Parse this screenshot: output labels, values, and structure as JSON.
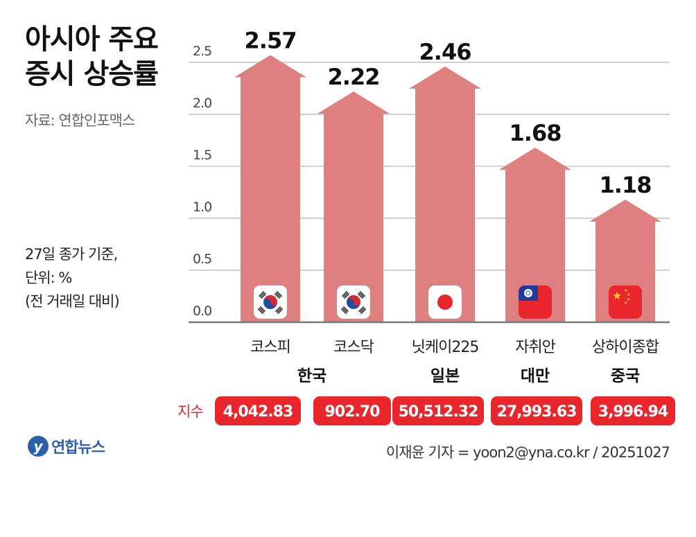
{
  "title_line1": "아시아 주요",
  "title_line2": "증시 상승률",
  "source": "자료: 연합인포맥스",
  "note_lines": [
    "27일 종가 기준,",
    "단위: %",
    "(전 거래일 대비)"
  ],
  "index_label": "지수",
  "logo_text": "연합뉴스",
  "credit": "이재윤 기자 = yoon2@yna.co.kr / 20251027",
  "colors": {
    "arrow": "#df8080",
    "badge": "#e8262b",
    "grid": "#d0d0d0",
    "axis": "#777777"
  },
  "chart_data": {
    "type": "bar",
    "title": "아시아 주요 증시 상승률",
    "ylabel": "%",
    "ylim": [
      0,
      2.5
    ],
    "yticks": [
      "0.0",
      "0.5",
      "1.0",
      "1.5",
      "2.0",
      "2.5"
    ],
    "grid": true,
    "categories": [
      "코스피",
      "코스닥",
      "닛케이225",
      "자취안",
      "상하이종합"
    ],
    "countries": [
      "한국",
      "",
      "일본",
      "대만",
      "중국"
    ],
    "flags": [
      "kr",
      "kr",
      "jp",
      "tw",
      "cn"
    ],
    "values": [
      2.57,
      2.22,
      2.46,
      1.68,
      1.18
    ],
    "value_labels": [
      "2.57",
      "2.22",
      "2.46",
      "1.68",
      "1.18"
    ],
    "index_values": [
      "4,042.83",
      "902.70",
      "50,512.32",
      "27,993.63",
      "3,996.94"
    ]
  }
}
